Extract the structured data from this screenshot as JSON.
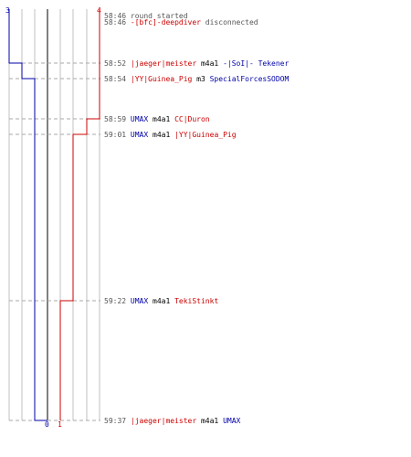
{
  "colors": {
    "team_blue": "#0000aa",
    "team_red": "#cc0000",
    "time": "#555555",
    "neutral_text": "#555555",
    "weapon_text": "#000000",
    "grid": "#c0c0c0",
    "dashed": "#aaaaaa",
    "center_bar": "#808080"
  },
  "scoreboard": {
    "blue_start": "3",
    "red_start": "4",
    "blue_end": "0",
    "red_end": "1"
  },
  "events": [
    {
      "time": "58:46",
      "kind": "system",
      "message": "round started"
    },
    {
      "time": "58:46",
      "kind": "disconnect",
      "player": "-[bfc]-deepdiver",
      "player_team": "red",
      "message": "disconnected"
    },
    {
      "time": "58:52",
      "kind": "kill",
      "killer": "|jaeger|meister",
      "killer_team": "red",
      "weapon": "m4a1",
      "victim": "-|SoI|- Tekener",
      "victim_team": "blue"
    },
    {
      "time": "58:54",
      "kind": "kill",
      "killer": "|YY|Guinea_Pig",
      "killer_team": "red",
      "weapon": "m3",
      "victim": "SpecialForcesSODOM",
      "victim_team": "blue"
    },
    {
      "time": "58:59",
      "kind": "kill",
      "killer": "UMAX",
      "killer_team": "blue",
      "weapon": "m4a1",
      "victim": "CC|Duron",
      "victim_team": "red"
    },
    {
      "time": "59:01",
      "kind": "kill",
      "killer": "UMAX",
      "killer_team": "blue",
      "weapon": "m4a1",
      "victim": "|YY|Guinea_Pig",
      "victim_team": "red"
    },
    {
      "time": "59:22",
      "kind": "kill",
      "killer": "UMAX",
      "killer_team": "blue",
      "weapon": "m4a1",
      "victim": "TekiStinkt",
      "victim_team": "red"
    },
    {
      "time": "59:37",
      "kind": "kill",
      "killer": "|jaeger|meister",
      "killer_team": "red",
      "weapon": "m4a1",
      "victim": "UMAX",
      "victim_team": "blue"
    }
  ]
}
